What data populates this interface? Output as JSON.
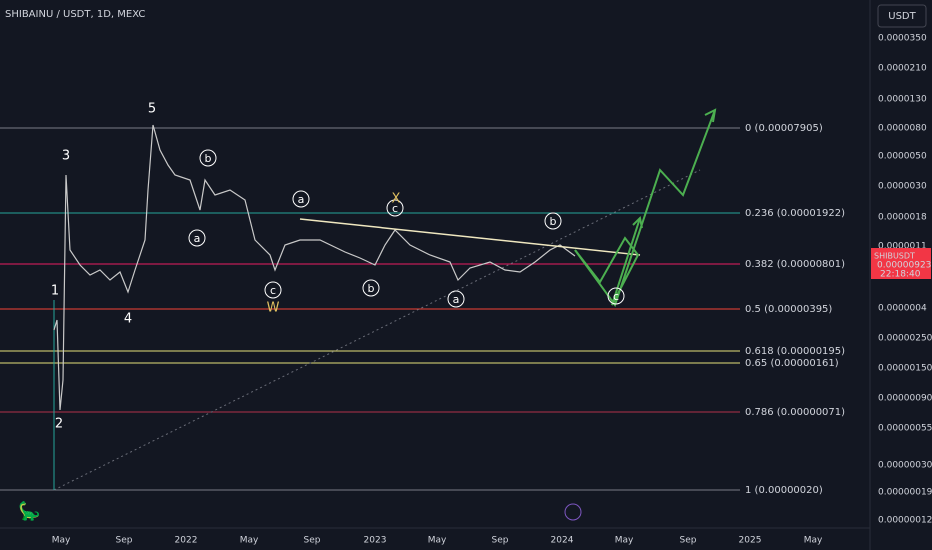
{
  "header": {
    "title": "SHIBAINU / USDT, 1D, MEXC",
    "currency": "USDT"
  },
  "price_axis": [
    "0.0000350",
    "0.0000210",
    "0.0000130",
    "0.0000080",
    "0.0000050",
    "0.0000030",
    "0.0000018",
    "0.0000011",
    "0.0000004",
    "0.00000250",
    "0.00000150",
    "0.00000090",
    "0.00000055",
    "0.00000030",
    "0.00000019",
    "0.00000012"
  ],
  "time_axis": [
    "May",
    "Sep",
    "2022",
    "May",
    "Sep",
    "2023",
    "May",
    "Sep",
    "2024",
    "May",
    "Sep",
    "2025",
    "May"
  ],
  "price_tag": {
    "symbol": "SHIBUSDT",
    "price": "0.00000923",
    "countdown": "22:18:40"
  },
  "fib_levels": [
    "0 (0.00007905)",
    "0.236 (0.00001922)",
    "0.382 (0.00000801)",
    "0.5 (0.00000395)",
    "0.618 (0.00000195)",
    "0.65 (0.00000161)",
    "0.786 (0.00000071)",
    "1 (0.00000020)"
  ],
  "waves": [
    "1",
    "2",
    "3",
    "4",
    "5",
    "b",
    "a",
    "c",
    "W",
    "a",
    "c",
    "X",
    "b",
    "a",
    "b",
    "c"
  ]
}
